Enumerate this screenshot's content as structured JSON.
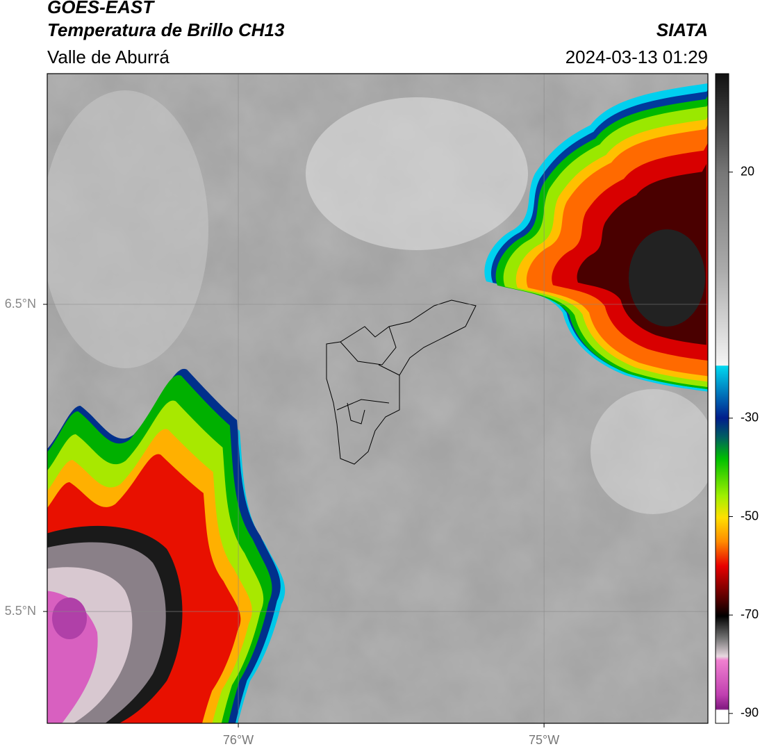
{
  "header": {
    "satellite": "GOES-EAST",
    "product": "Temperatura de Brillo CH13",
    "region": "Valle de Aburrá",
    "agency": "SIATA",
    "datetime": "2024-03-13 01:29"
  },
  "map": {
    "xlim": [
      -76.625,
      -74.464
    ],
    "ylim": [
      5.136,
      7.251
    ],
    "xticks": [
      {
        "value": -76,
        "label": "76°W"
      },
      {
        "value": -75,
        "label": "75°W"
      }
    ],
    "yticks": [
      {
        "value": 5.5,
        "label": "5.5°N"
      },
      {
        "value": 6.5,
        "label": "6.5°N"
      }
    ],
    "grid": true
  },
  "colorbar": {
    "lim": [
      -92,
      40
    ],
    "ticks": [
      20,
      -30,
      -50,
      -70,
      -90
    ]
  }
}
